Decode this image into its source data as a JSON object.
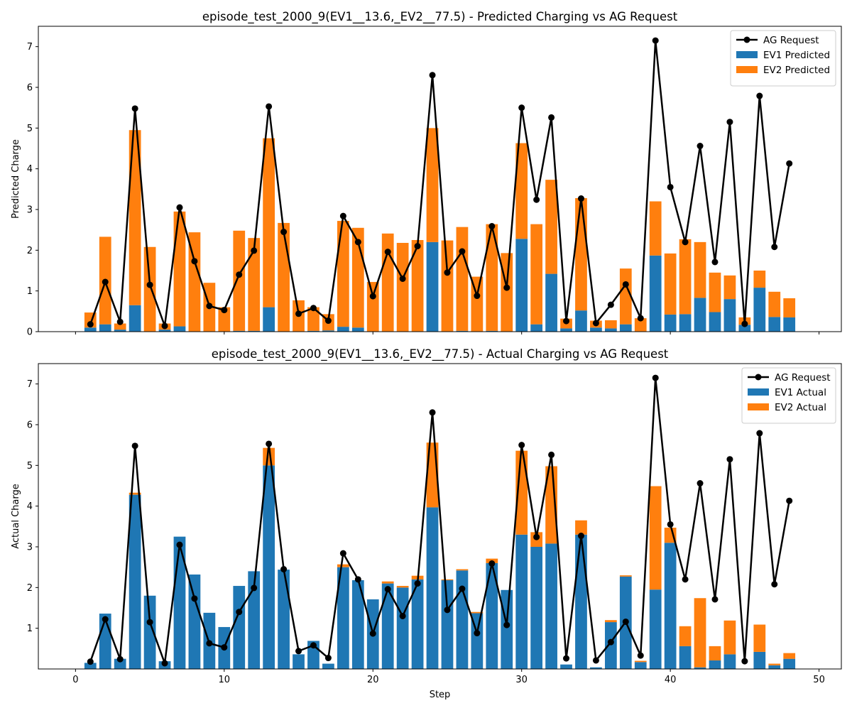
{
  "chart_data": [
    {
      "type": "bar",
      "stacked": true,
      "title": "episode_test_2000_9(EV1__13.6,_EV2__77.5) - Predicted Charging vs AG Request",
      "xlabel": "",
      "ylabel": "Predicted Charge",
      "xlim": [
        -2.5,
        51.5
      ],
      "ylim": [
        0,
        7.5
      ],
      "xticks": [
        0,
        10,
        20,
        30,
        40,
        50
      ],
      "yticks": [
        0,
        1,
        2,
        3,
        4,
        5,
        6,
        7
      ],
      "grid": false,
      "legend_position": "upper right",
      "x": [
        1,
        2,
        3,
        4,
        5,
        6,
        7,
        8,
        9,
        10,
        11,
        12,
        13,
        14,
        15,
        16,
        17,
        18,
        19,
        20,
        21,
        22,
        23,
        24,
        25,
        26,
        27,
        28,
        29,
        30,
        31,
        32,
        33,
        34,
        35,
        36,
        37,
        38,
        39,
        40,
        41,
        42,
        43,
        44,
        45,
        46,
        47,
        48
      ],
      "series": [
        {
          "name": "EV1 Predicted",
          "kind": "bar",
          "color": "#1f77b4",
          "values": [
            0.1,
            0.18,
            0.05,
            0.65,
            0.0,
            0.05,
            0.13,
            0.0,
            0.0,
            0.0,
            0.02,
            0.02,
            0.6,
            0.0,
            0.0,
            0.02,
            0.03,
            0.12,
            0.1,
            0.0,
            0.0,
            0.0,
            0.0,
            2.2,
            0.0,
            0.02,
            0.0,
            0.02,
            0.0,
            2.28,
            0.18,
            1.42,
            0.08,
            0.52,
            0.1,
            0.08,
            0.18,
            0.0,
            1.87,
            0.42,
            0.43,
            0.83,
            0.48,
            0.8,
            0.17,
            1.08,
            0.36,
            0.35
          ]
        },
        {
          "name": "EV2 Predicted",
          "kind": "bar",
          "color": "#ff7f0e",
          "values": [
            0.37,
            2.15,
            0.15,
            4.3,
            2.08,
            0.15,
            2.82,
            2.44,
            1.2,
            0.6,
            2.46,
            2.28,
            4.15,
            2.67,
            0.77,
            0.58,
            0.4,
            2.6,
            2.45,
            1.22,
            2.41,
            2.18,
            2.25,
            2.8,
            2.24,
            2.55,
            1.35,
            2.62,
            1.93,
            2.35,
            2.46,
            2.31,
            0.24,
            2.76,
            0.17,
            0.2,
            1.37,
            0.33,
            1.33,
            1.5,
            1.84,
            1.37,
            0.97,
            0.58,
            0.18,
            0.42,
            0.62,
            0.47
          ]
        },
        {
          "name": "AG Request",
          "kind": "line",
          "color": "#000000",
          "values": [
            0.18,
            1.22,
            0.24,
            5.48,
            1.15,
            0.14,
            3.05,
            1.73,
            0.63,
            0.53,
            1.4,
            1.99,
            5.53,
            2.45,
            0.44,
            0.58,
            0.27,
            2.84,
            2.2,
            0.87,
            1.96,
            1.3,
            2.1,
            6.3,
            1.45,
            1.97,
            0.88,
            2.59,
            1.08,
            5.5,
            3.24,
            5.26,
            0.26,
            3.27,
            0.21,
            0.66,
            1.16,
            0.33,
            7.15,
            3.55,
            2.2,
            4.56,
            1.71,
            5.15,
            0.19,
            5.79,
            2.08,
            4.13
          ]
        }
      ]
    },
    {
      "type": "bar",
      "stacked": true,
      "title": "episode_test_2000_9(EV1__13.6,_EV2__77.5) - Actual Charging vs AG Request",
      "xlabel": "Step",
      "ylabel": "Actual Charge",
      "xlim": [
        -2.5,
        51.5
      ],
      "ylim": [
        0,
        7.5
      ],
      "xticks": [
        0,
        10,
        20,
        30,
        40,
        50
      ],
      "yticks": [
        1,
        2,
        3,
        4,
        5,
        6,
        7
      ],
      "grid": false,
      "legend_position": "upper right",
      "x": [
        1,
        2,
        3,
        4,
        5,
        6,
        7,
        8,
        9,
        10,
        11,
        12,
        13,
        14,
        15,
        16,
        17,
        18,
        19,
        20,
        21,
        22,
        23,
        24,
        25,
        26,
        27,
        28,
        29,
        30,
        31,
        32,
        33,
        34,
        35,
        36,
        37,
        38,
        39,
        40,
        41,
        42,
        43,
        44,
        45,
        46,
        47,
        48
      ],
      "series": [
        {
          "name": "EV1 Actual",
          "kind": "bar",
          "color": "#1f77b4",
          "values": [
            0.15,
            1.36,
            0.25,
            4.28,
            1.8,
            0.19,
            3.25,
            2.32,
            1.38,
            1.03,
            2.04,
            2.4,
            5.0,
            2.44,
            0.36,
            0.69,
            0.13,
            2.5,
            2.18,
            1.71,
            2.1,
            2.0,
            2.2,
            3.97,
            2.18,
            2.42,
            1.37,
            2.6,
            1.94,
            3.3,
            3.0,
            3.08,
            0.11,
            3.3,
            0.04,
            1.15,
            2.27,
            0.17,
            1.95,
            3.1,
            0.56,
            0.04,
            0.21,
            0.36,
            0.0,
            0.42,
            0.09,
            0.25
          ]
        },
        {
          "name": "EV2 Actual",
          "kind": "bar",
          "color": "#ff7f0e",
          "values": [
            0.0,
            0.0,
            0.0,
            0.05,
            0.0,
            0.0,
            0.0,
            0.0,
            0.0,
            0.0,
            0.0,
            0.0,
            0.43,
            0.0,
            0.0,
            0.0,
            0.0,
            0.07,
            0.0,
            0.0,
            0.05,
            0.04,
            0.09,
            1.59,
            0.02,
            0.03,
            0.03,
            0.11,
            0.0,
            2.06,
            0.36,
            1.9,
            0.0,
            0.35,
            0.0,
            0.05,
            0.03,
            0.03,
            2.54,
            0.37,
            0.49,
            1.7,
            0.35,
            0.83,
            0.0,
            0.67,
            0.04,
            0.14
          ]
        },
        {
          "name": "AG Request",
          "kind": "line",
          "color": "#000000",
          "values": [
            0.18,
            1.22,
            0.24,
            5.48,
            1.15,
            0.14,
            3.05,
            1.73,
            0.63,
            0.53,
            1.4,
            1.99,
            5.53,
            2.45,
            0.44,
            0.58,
            0.27,
            2.84,
            2.2,
            0.87,
            1.96,
            1.3,
            2.1,
            6.3,
            1.45,
            1.97,
            0.88,
            2.59,
            1.08,
            5.5,
            3.24,
            5.26,
            0.26,
            3.27,
            0.21,
            0.66,
            1.16,
            0.33,
            7.15,
            3.55,
            2.2,
            4.56,
            1.71,
            5.15,
            0.19,
            5.79,
            2.08,
            4.13
          ]
        }
      ]
    }
  ]
}
